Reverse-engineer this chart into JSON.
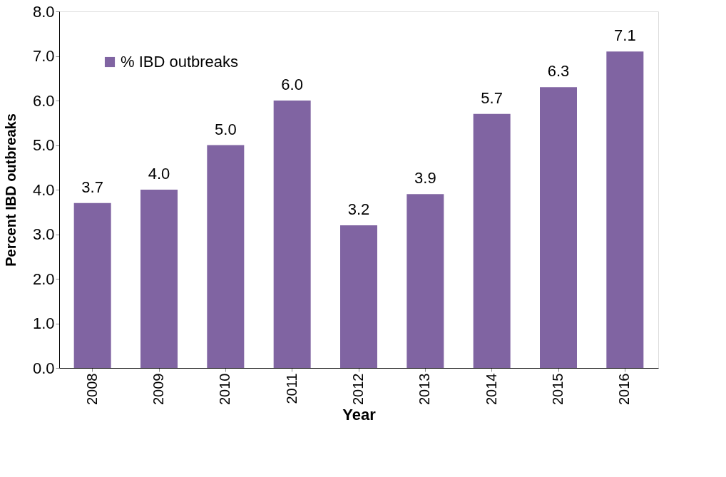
{
  "chart_data": {
    "type": "bar",
    "xlabel": "Year",
    "ylabel": "Percent IBD outbreaks",
    "categories": [
      "2008",
      "2009",
      "2010",
      "2011",
      "2012",
      "2013",
      "2014",
      "2015",
      "2016"
    ],
    "series": [
      {
        "name": "% IBD outbreaks",
        "color": "#8064a2",
        "values": [
          3.7,
          4.0,
          5.0,
          6.0,
          3.2,
          3.9,
          5.7,
          6.3,
          7.1
        ],
        "value_labels": [
          "3.7",
          "4.0",
          "5.0",
          "6.0",
          "3.2",
          "3.9",
          "5.7",
          "6.3",
          "7.1"
        ]
      }
    ],
    "ylim": [
      0,
      8
    ],
    "yticks": [
      {
        "value": 0,
        "label": "0.0"
      },
      {
        "value": 1,
        "label": "1.0"
      },
      {
        "value": 2,
        "label": "2.0"
      },
      {
        "value": 3,
        "label": "3.0"
      },
      {
        "value": 4,
        "label": "4.0"
      },
      {
        "value": 5,
        "label": "5.0"
      },
      {
        "value": 6,
        "label": "6.0"
      },
      {
        "value": 7,
        "label": "7.0"
      },
      {
        "value": 8,
        "label": "8.0"
      }
    ],
    "legend": "top left",
    "grid": false
  }
}
